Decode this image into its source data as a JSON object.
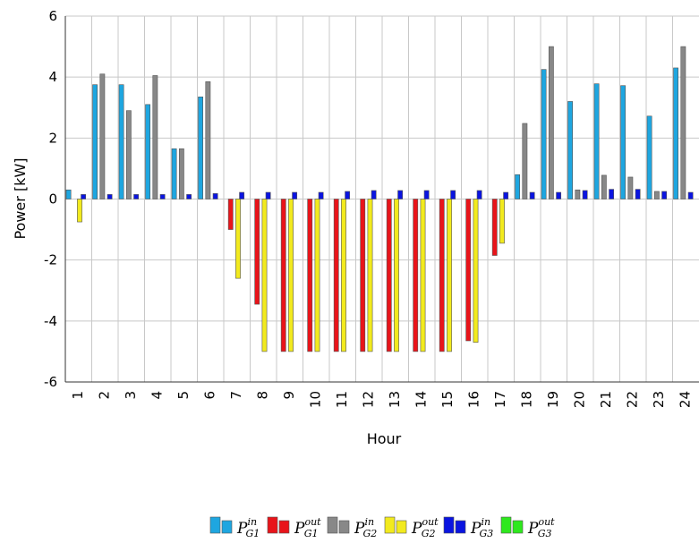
{
  "chart_data": {
    "type": "bar",
    "xlabel": "Hour",
    "ylabel": "Power [kW]",
    "ylim": [
      -6,
      6
    ],
    "yticks": [
      "-6",
      "-4",
      "-2",
      "0",
      "2",
      "4",
      "6"
    ],
    "grid": true,
    "legend_position": "bottom",
    "categories": [
      "1",
      "2",
      "3",
      "4",
      "5",
      "6",
      "7",
      "8",
      "9",
      "10",
      "11",
      "12",
      "13",
      "14",
      "15",
      "16",
      "17",
      "18",
      "19",
      "20",
      "21",
      "22",
      "23",
      "24"
    ],
    "series": [
      {
        "name": "P_G1^in",
        "label_main": "P",
        "label_sup": "in",
        "label_sub": "G1",
        "color": "#1ea6e0",
        "values": [
          0.3,
          3.75,
          3.75,
          3.1,
          1.65,
          3.35,
          0,
          0,
          0,
          0,
          0,
          0,
          0,
          0,
          0,
          0,
          0,
          0.8,
          4.25,
          3.2,
          3.78,
          3.72,
          2.72,
          4.3
        ]
      },
      {
        "name": "P_G1^out",
        "label_main": "P",
        "label_sup": "out",
        "label_sub": "G1",
        "color": "#e8141a",
        "values": [
          0,
          0,
          0,
          0,
          0,
          0,
          -1.0,
          -3.45,
          -5,
          -5,
          -5,
          -5,
          -5,
          -5,
          -5,
          -4.65,
          -1.85,
          0,
          0,
          0,
          0,
          0,
          0,
          0
        ]
      },
      {
        "name": "P_G2^in",
        "label_main": "P",
        "label_sup": "in",
        "label_sub": "G2",
        "color": "#888888",
        "values": [
          0,
          4.1,
          2.9,
          4.05,
          1.65,
          3.85,
          0,
          0,
          0,
          0,
          0,
          0,
          0,
          0,
          0,
          0,
          0,
          2.48,
          5.0,
          0.3,
          0.78,
          0.72,
          0.25,
          5.0
        ]
      },
      {
        "name": "P_G2^out",
        "label_main": "P",
        "label_sup": "out",
        "label_sub": "G2",
        "color": "#f2ea1e",
        "values": [
          -0.75,
          0,
          0,
          0,
          0,
          0,
          -2.6,
          -5,
          -5,
          -5,
          -5,
          -5,
          -5,
          -5,
          -5,
          -4.7,
          -1.45,
          0,
          0,
          0,
          0,
          0,
          0,
          0
        ]
      },
      {
        "name": "P_G3^in",
        "label_main": "P",
        "label_sup": "in",
        "label_sub": "G3",
        "color": "#0a14e0",
        "values": [
          0.15,
          0.15,
          0.15,
          0.15,
          0.15,
          0.18,
          0.22,
          0.22,
          0.22,
          0.22,
          0.25,
          0.28,
          0.28,
          0.28,
          0.28,
          0.28,
          0.22,
          0.22,
          0.22,
          0.28,
          0.32,
          0.32,
          0.25,
          0.22
        ]
      },
      {
        "name": "P_G3^out",
        "label_main": "P",
        "label_sup": "out",
        "label_sub": "G3",
        "color": "#2ee81e",
        "values": [
          0,
          0,
          0,
          0,
          0,
          0,
          0,
          0,
          0,
          0,
          0,
          0,
          0,
          0,
          0,
          0,
          0,
          0,
          0,
          0,
          0,
          0,
          0,
          0
        ]
      }
    ]
  }
}
